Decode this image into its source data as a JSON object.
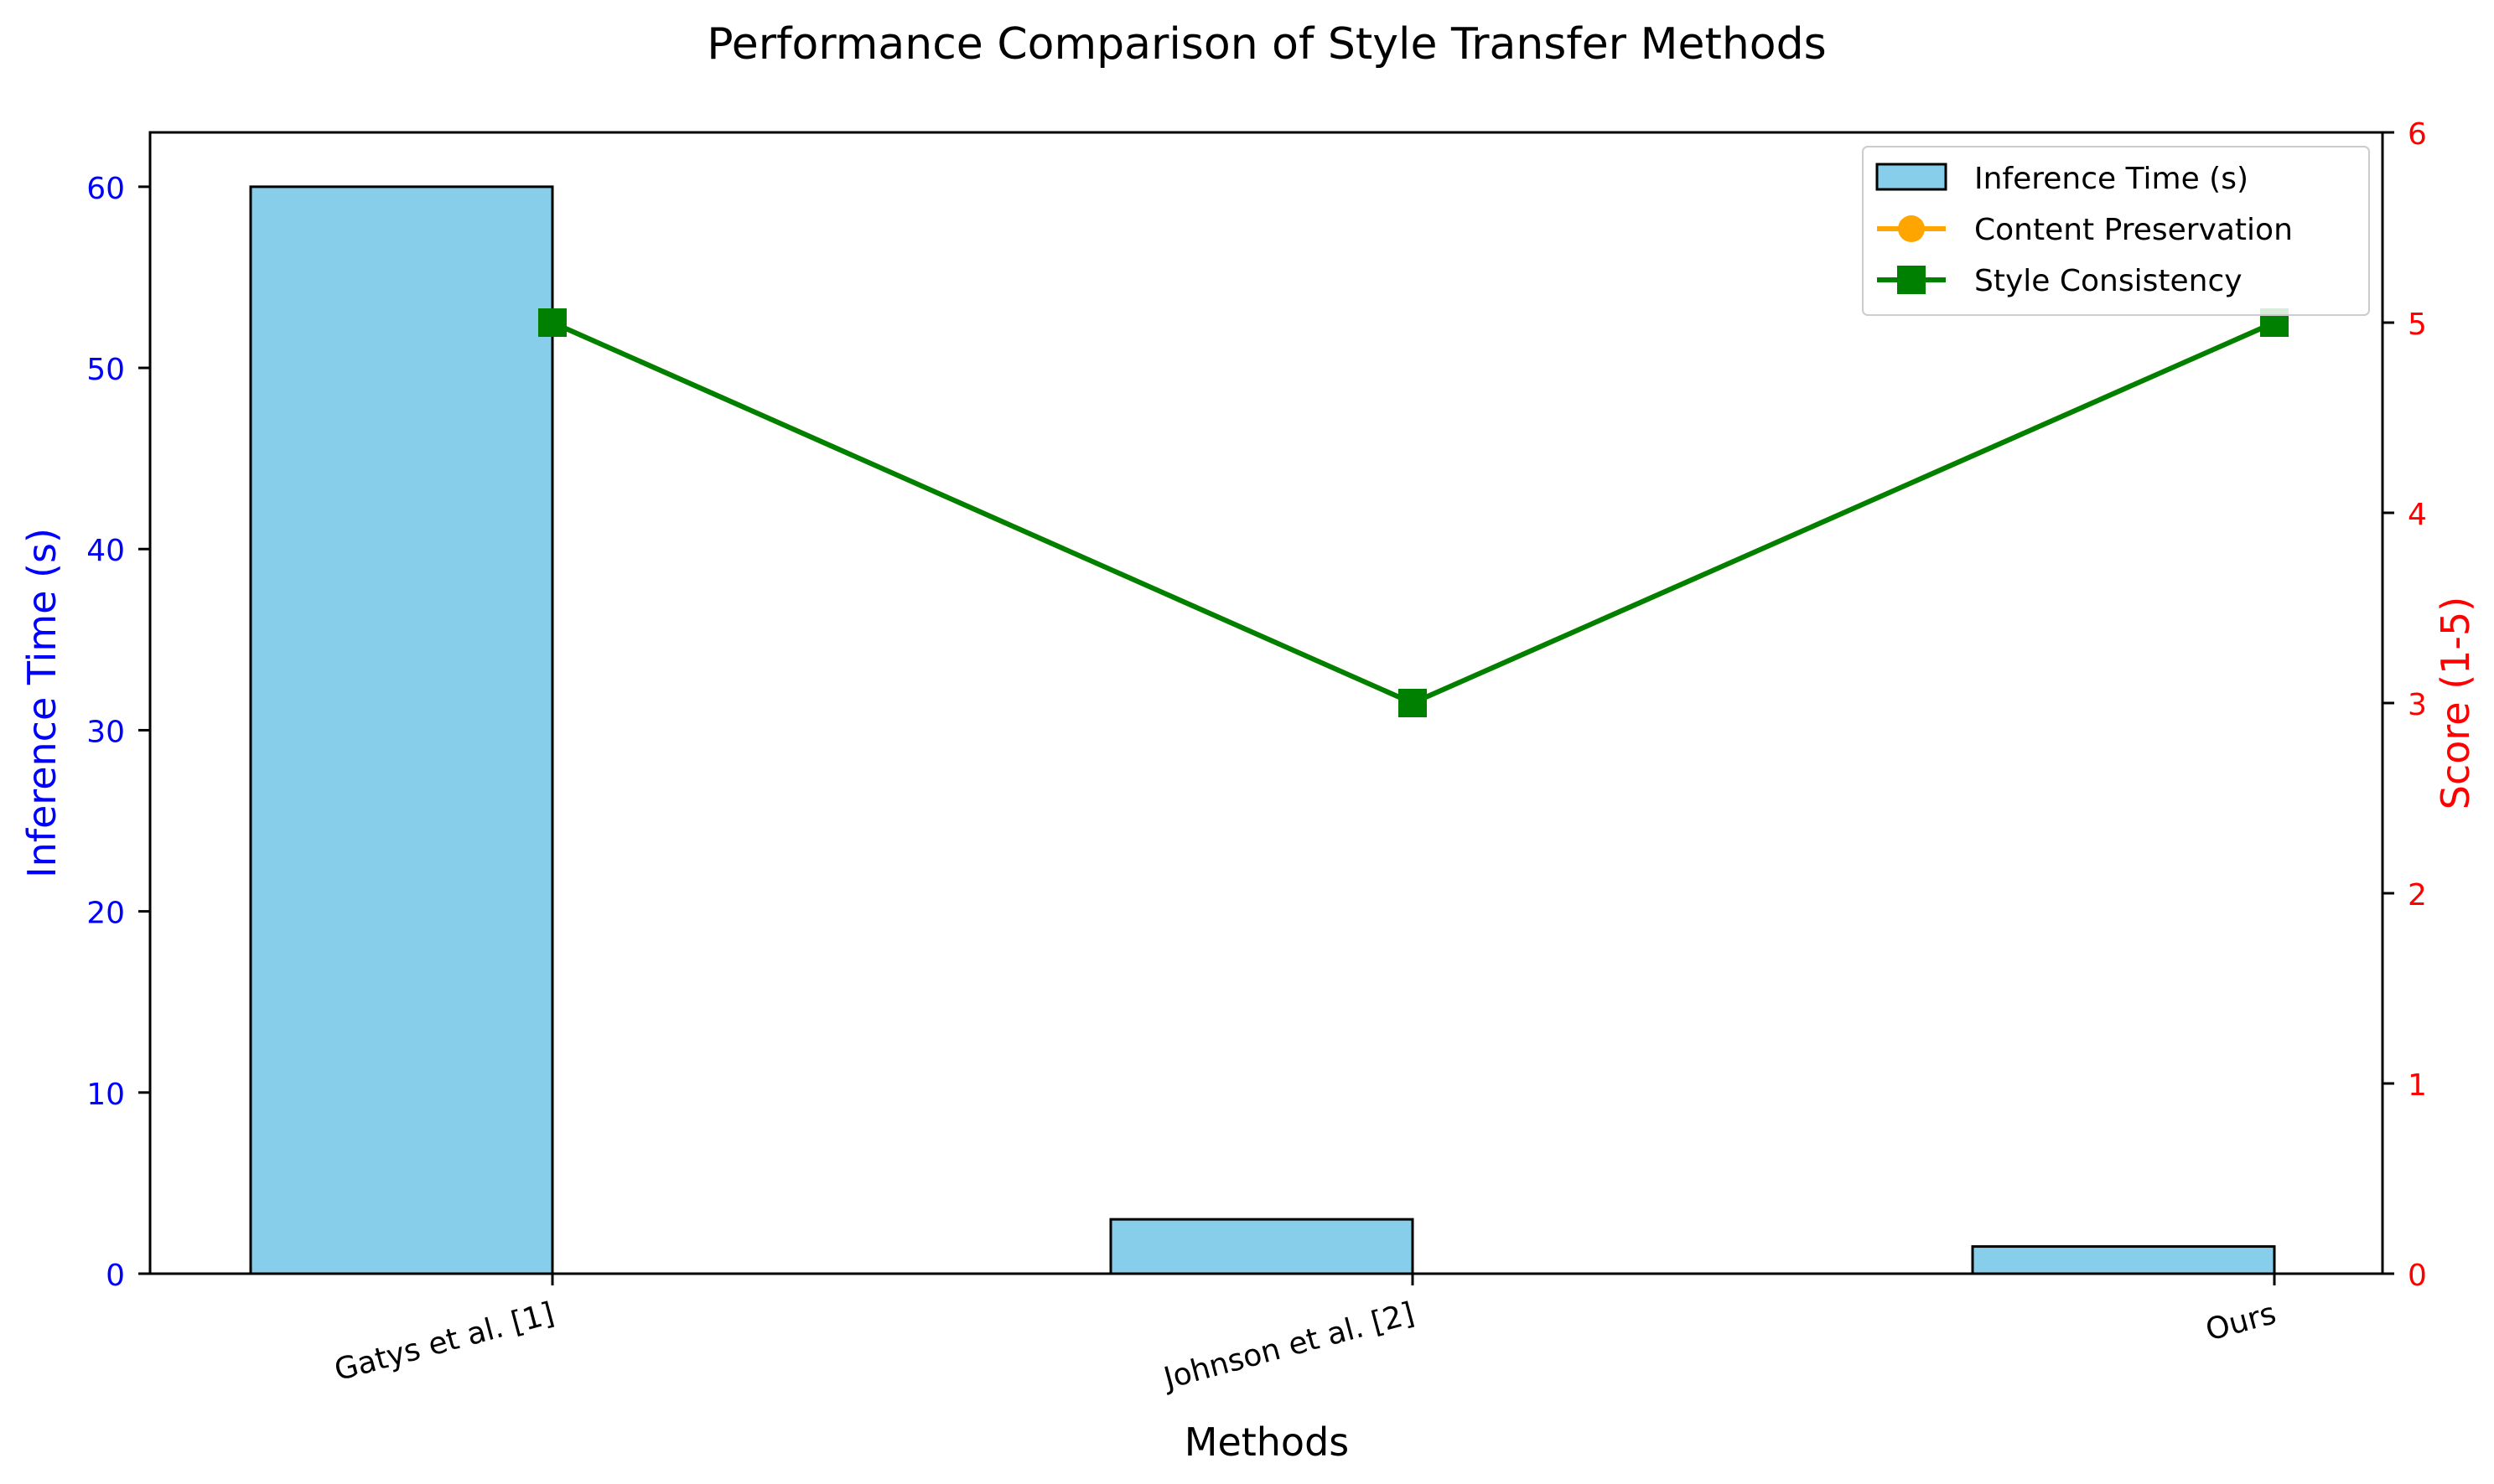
{
  "chart_data": {
    "type": "bar",
    "title": "Performance Comparison of Style Transfer Methods",
    "xlabel": "Methods",
    "ylabel_left": "Inference Time (s)",
    "ylabel_right": "Score (1-5)",
    "categories": [
      "Gatys et al. [1]",
      "Johnson et al. [2]",
      "Ours"
    ],
    "y_left_lim": [
      0,
      63
    ],
    "y_left_ticks": [
      0,
      10,
      20,
      30,
      40,
      50,
      60
    ],
    "y_right_lim": [
      0,
      6
    ],
    "y_right_ticks": [
      0,
      1,
      2,
      3,
      4,
      5,
      6
    ],
    "grid": false,
    "legend_position": "top-right",
    "series": [
      {
        "name": "Inference Time (s)",
        "kind": "bar",
        "axis": "left",
        "values": [
          60,
          3,
          1.5
        ],
        "color": "#87CEEB",
        "edge_color": "#000000"
      },
      {
        "name": "Content Preservation",
        "kind": "line",
        "axis": "right",
        "marker": "circle",
        "values": [
          5,
          3,
          5
        ],
        "color": "#FFA500"
      },
      {
        "name": "Style Consistency",
        "kind": "line",
        "axis": "right",
        "marker": "square",
        "values": [
          5,
          3,
          5
        ],
        "color": "#008000"
      }
    ],
    "left_axis_color": "#0000FF",
    "right_axis_color": "#FF0000"
  }
}
